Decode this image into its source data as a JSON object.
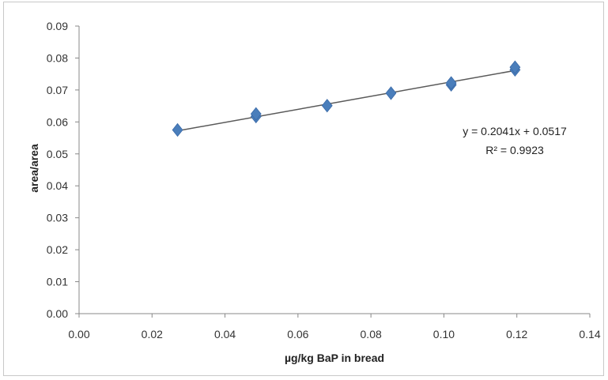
{
  "chart_data": {
    "type": "scatter",
    "title": "",
    "xlabel": "µg/kg BaP in bread",
    "ylabel": "area/area",
    "xlim": [
      0,
      0.14
    ],
    "ylim": [
      0,
      0.09
    ],
    "x_ticks": [
      "0.00",
      "0.02",
      "0.04",
      "0.06",
      "0.08",
      "0.10",
      "0.12",
      "0.14"
    ],
    "y_ticks": [
      "0.00",
      "0.01",
      "0.02",
      "0.03",
      "0.04",
      "0.05",
      "0.06",
      "0.07",
      "0.08",
      "0.09"
    ],
    "grid": false,
    "legend": "none",
    "series": [
      {
        "marker": "diamond",
        "color": "#4a7ebb",
        "points": [
          {
            "x": 0.027,
            "y": 0.0575
          },
          {
            "x": 0.0485,
            "y": 0.0617
          },
          {
            "x": 0.0485,
            "y": 0.0625
          },
          {
            "x": 0.068,
            "y": 0.0651
          },
          {
            "x": 0.0855,
            "y": 0.069
          },
          {
            "x": 0.102,
            "y": 0.0716
          },
          {
            "x": 0.102,
            "y": 0.0722
          },
          {
            "x": 0.1195,
            "y": 0.0763
          },
          {
            "x": 0.1195,
            "y": 0.0771
          }
        ]
      }
    ],
    "trendline": {
      "type": "linear",
      "slope": 0.2041,
      "intercept": 0.0517,
      "x_range": [
        0.027,
        0.1195
      ],
      "color": "#595959",
      "equation_label": "y = 0.2041x + 0.0517",
      "r2_label": "R² = 0.9923"
    }
  }
}
